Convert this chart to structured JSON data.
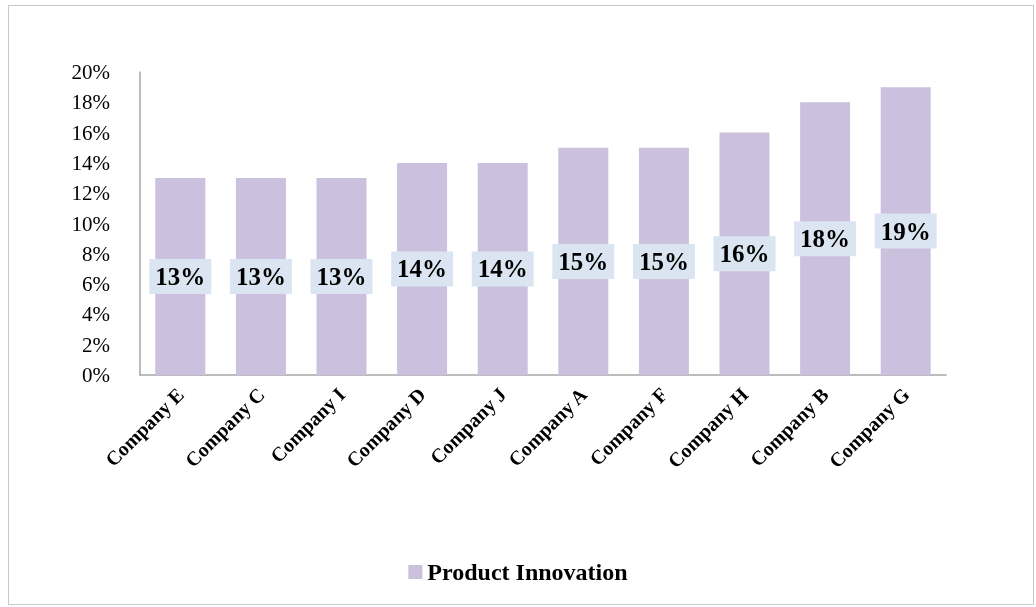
{
  "chart_data": {
    "type": "bar",
    "categories": [
      "Company E",
      "Company C",
      "Company I",
      "Company D",
      "Company J",
      "Company A",
      "Company F",
      "Company H",
      "Company B",
      "Company G"
    ],
    "series": [
      {
        "name": "Product Innovation",
        "color": "#cbc0dd",
        "values": [
          13,
          13,
          13,
          14,
          14,
          15,
          15,
          16,
          18,
          19
        ],
        "value_labels": [
          "13%",
          "13%",
          "13%",
          "14%",
          "14%",
          "15%",
          "15%",
          "16%",
          "18%",
          "19%"
        ]
      }
    ],
    "ylim": [
      0,
      20
    ],
    "yticks": [
      {
        "value": 0,
        "label": "0%"
      },
      {
        "value": 2,
        "label": "2%"
      },
      {
        "value": 4,
        "label": "4%"
      },
      {
        "value": 6,
        "label": "6%"
      },
      {
        "value": 8,
        "label": "8%"
      },
      {
        "value": 10,
        "label": "10%"
      },
      {
        "value": 12,
        "label": "12%"
      },
      {
        "value": 14,
        "label": "14%"
      },
      {
        "value": 16,
        "label": "16%"
      },
      {
        "value": 18,
        "label": "18%"
      },
      {
        "value": 20,
        "label": "20%"
      }
    ],
    "legend": "bottom"
  }
}
